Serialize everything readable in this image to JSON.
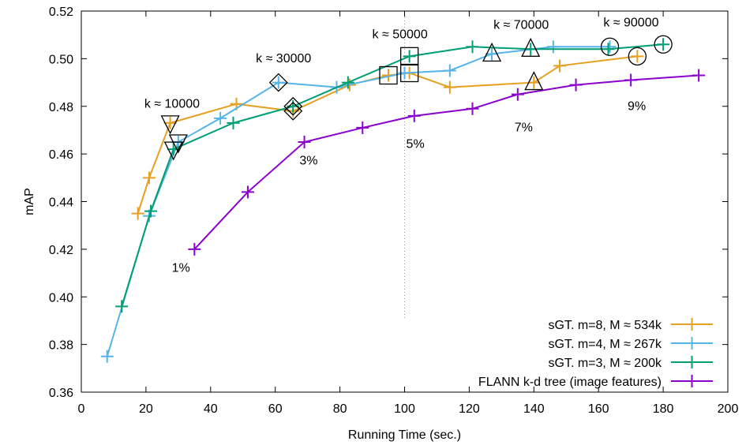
{
  "chart_data": {
    "type": "line",
    "title": "",
    "xlabel": "Running Time (sec.)",
    "ylabel": "mAP",
    "xlim": [
      0,
      200
    ],
    "ylim": [
      0.36,
      0.52
    ],
    "xticks": [
      "0",
      "20",
      "40",
      "60",
      "80",
      "100",
      "120",
      "140",
      "160",
      "180",
      "200"
    ],
    "yticks": [
      "0.36",
      "0.38",
      "0.40",
      "0.42",
      "0.44",
      "0.46",
      "0.48",
      "0.50",
      "0.52"
    ],
    "grid": "dotted",
    "legend_position": "bottom-right",
    "series": [
      {
        "name": "sGT. m=8, M ≈ 534k",
        "color": "#e6a020",
        "points": [
          [
            17.5,
            0.435
          ],
          [
            21,
            0.45
          ],
          [
            27.5,
            0.473
          ],
          [
            48,
            0.481
          ],
          [
            65.5,
            0.478
          ],
          [
            83,
            0.489
          ],
          [
            95,
            0.493
          ],
          [
            101.5,
            0.494
          ],
          [
            114,
            0.488
          ],
          [
            140,
            0.49
          ],
          [
            148,
            0.497
          ],
          [
            172,
            0.501
          ]
        ]
      },
      {
        "name": "sGT. m=4, M ≈ 267k",
        "color": "#56b4e9",
        "points": [
          [
            8,
            0.375
          ],
          [
            21,
            0.434
          ],
          [
            30,
            0.465
          ],
          [
            43,
            0.475
          ],
          [
            61,
            0.49
          ],
          [
            79,
            0.488
          ],
          [
            100,
            0.494
          ],
          [
            114,
            0.495
          ],
          [
            127,
            0.502
          ],
          [
            146,
            0.505
          ],
          [
            163.5,
            0.505
          ]
        ]
      },
      {
        "name": "sGT. m=3, M ≈ 200k",
        "color": "#009e73",
        "points": [
          [
            12.5,
            0.396
          ],
          [
            21.5,
            0.436
          ],
          [
            28.5,
            0.462
          ],
          [
            47,
            0.473
          ],
          [
            65.5,
            0.48
          ],
          [
            82.5,
            0.49
          ],
          [
            101.5,
            0.501
          ],
          [
            121,
            0.505
          ],
          [
            139,
            0.504
          ],
          [
            163,
            0.504
          ],
          [
            180,
            0.506
          ]
        ]
      },
      {
        "name": "FLANN k-d tree (image features)",
        "color": "#8b00cc",
        "points": [
          [
            35,
            0.42
          ],
          [
            51.5,
            0.444
          ],
          [
            69,
            0.465
          ],
          [
            87,
            0.471
          ],
          [
            103,
            0.476
          ],
          [
            121,
            0.479
          ],
          [
            135,
            0.485
          ],
          [
            153,
            0.489
          ],
          [
            170,
            0.491
          ],
          [
            191,
            0.493
          ]
        ]
      }
    ],
    "k_annotations": [
      {
        "label": "k ≈ 10000",
        "x": 19.5,
        "y": 0.4795
      },
      {
        "label": "k ≈ 30000",
        "x": 54,
        "y": 0.4985
      },
      {
        "label": "k ≈ 50000",
        "x": 90,
        "y": 0.5085
      },
      {
        "label": "k ≈ 70000",
        "x": 127.5,
        "y": 0.5125
      },
      {
        "label": "k ≈ 90000",
        "x": 161.5,
        "y": 0.5135
      }
    ],
    "percent_annotations": [
      {
        "label": "1%",
        "x": 28,
        "y": 0.4105
      },
      {
        "label": "3%",
        "x": 67.5,
        "y": 0.4555
      },
      {
        "label": "5%",
        "x": 100.5,
        "y": 0.4625
      },
      {
        "label": "7%",
        "x": 134,
        "y": 0.4695
      },
      {
        "label": "9%",
        "x": 169,
        "y": 0.4785
      }
    ],
    "k_markers": [
      {
        "shape": "triangle-down",
        "points": [
          [
            27.5,
            0.473
          ],
          [
            30,
            0.465
          ],
          [
            28.5,
            0.462
          ]
        ]
      },
      {
        "shape": "diamond",
        "points": [
          [
            61,
            0.49
          ],
          [
            65.5,
            0.478
          ],
          [
            65.5,
            0.48
          ]
        ]
      },
      {
        "shape": "square",
        "points": [
          [
            95,
            0.493
          ],
          [
            101.5,
            0.494
          ],
          [
            101.5,
            0.501
          ]
        ]
      },
      {
        "shape": "triangle-up",
        "points": [
          [
            140,
            0.49
          ],
          [
            127,
            0.502
          ],
          [
            139,
            0.504
          ]
        ]
      },
      {
        "shape": "circle",
        "points": [
          [
            172,
            0.501
          ],
          [
            163.5,
            0.505
          ],
          [
            180,
            0.506
          ]
        ]
      }
    ],
    "reference_line_x": 100
  }
}
